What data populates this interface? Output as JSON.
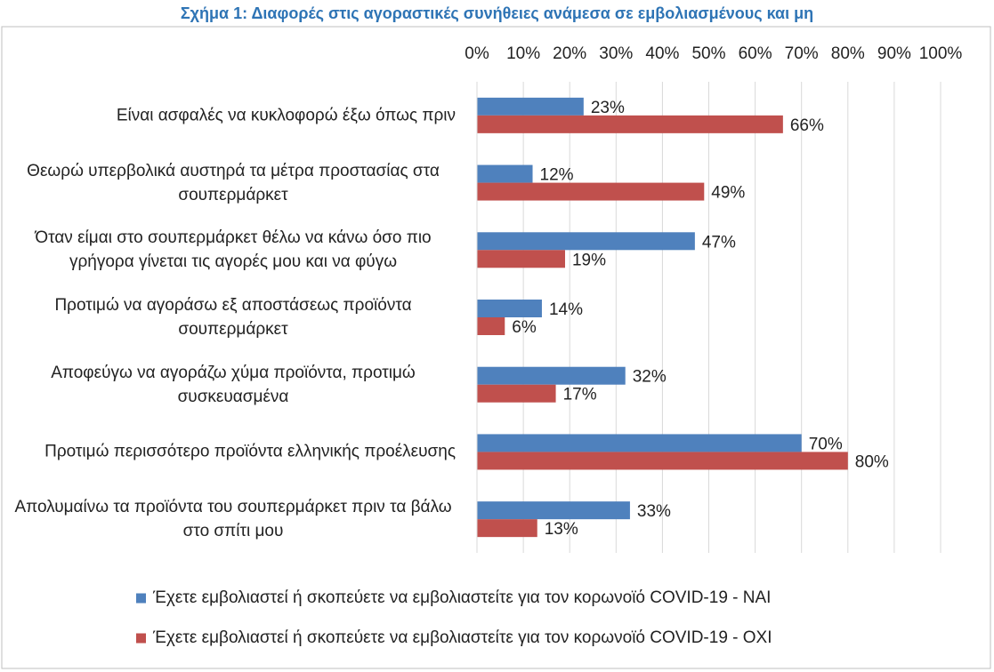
{
  "chart_data": {
    "type": "bar",
    "orientation": "horizontal",
    "title": "Σχήμα 1: Διαφορές στις αγοραστικές συνήθειες ανάμεσα σε εμβολιασμένους και μη",
    "categories": [
      "Είναι ασφαλές να κυκλοφορώ έξω όπως πριν",
      "Θεωρώ υπερβολικά αυστηρά τα μέτρα προστασίας στα σουπερμάρκετ",
      "Όταν είμαι στο σουπερμάρκετ θέλω να κάνω όσο πιο γρήγορα γίνεται τις αγορές μου και να φύγω",
      "Προτιμώ να αγοράσω εξ αποστάσεως προϊόντα σουπερμάρκετ",
      "Αποφεύγω να αγοράζω χύμα προϊόντα, προτιμώ συσκευασμένα",
      "Προτιμώ περισσότερο προϊόντα ελληνικής προέλευσης",
      "Απολυμαίνω τα προϊόντα του σουπερμάρκετ πριν τα βάλω στο σπίτι μου"
    ],
    "series": [
      {
        "name": "Έχετε εμβολιαστεί ή σκοπεύετε να εμβολιαστείτε για τον κορωνοϊό COVID-19 - ΝΑΙ",
        "color": "#4f81bd",
        "values": [
          23,
          12,
          47,
          14,
          32,
          70,
          33
        ],
        "value_labels": [
          "23%",
          "12%",
          "47%",
          "14%",
          "32%",
          "70%",
          "33%"
        ]
      },
      {
        "name": "Έχετε εμβολιαστεί ή σκοπεύετε να εμβολιαστείτε για τον κορωνοϊό COVID-19 - ΟΧΙ",
        "color": "#c0504d",
        "values": [
          66,
          49,
          19,
          6,
          17,
          80,
          13
        ],
        "value_labels": [
          "66%",
          "49%",
          "19%",
          "6%",
          "17%",
          "80%",
          "13%"
        ]
      }
    ],
    "xlim": [
      0,
      100
    ],
    "xticks": [
      {
        "value": 0,
        "label": "0%"
      },
      {
        "value": 10,
        "label": "10%"
      },
      {
        "value": 20,
        "label": "20%"
      },
      {
        "value": 30,
        "label": "30%"
      },
      {
        "value": 40,
        "label": "40%"
      },
      {
        "value": 50,
        "label": "50%"
      },
      {
        "value": 60,
        "label": "60%"
      },
      {
        "value": 70,
        "label": "70%"
      },
      {
        "value": 80,
        "label": "80%"
      },
      {
        "value": 90,
        "label": "90%"
      },
      {
        "value": 100,
        "label": "100%"
      }
    ],
    "grid": true,
    "legend": "bottom"
  }
}
